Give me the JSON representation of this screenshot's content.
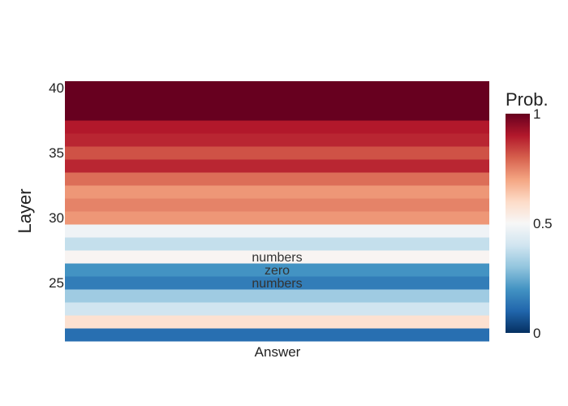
{
  "chart_data": {
    "type": "heatmap",
    "xlabel": "Answer",
    "ylabel": "Layer",
    "x_categories": [
      "Answer"
    ],
    "ylim": [
      20.5,
      40.5
    ],
    "y_ticks": [
      25,
      30,
      35,
      40
    ],
    "colorscale": "RdBu (reversed)",
    "colorbar": {
      "title": "Prob.",
      "min": 0,
      "max": 1,
      "ticks": [
        0,
        0.5,
        1
      ]
    },
    "cells": [
      {
        "layer": 21,
        "value": 0.12,
        "label": ""
      },
      {
        "layer": 22,
        "value": 0.58,
        "label": ""
      },
      {
        "layer": 23,
        "value": 0.4,
        "label": ""
      },
      {
        "layer": 24,
        "value": 0.32,
        "label": ""
      },
      {
        "layer": 25,
        "value": 0.15,
        "label": "numbers"
      },
      {
        "layer": 26,
        "value": 0.2,
        "label": "zero"
      },
      {
        "layer": 27,
        "value": 0.51,
        "label": "numbers"
      },
      {
        "layer": 28,
        "value": 0.38,
        "label": ""
      },
      {
        "layer": 29,
        "value": 0.48,
        "label": ""
      },
      {
        "layer": 30,
        "value": 0.72,
        "label": ""
      },
      {
        "layer": 31,
        "value": 0.75,
        "label": ""
      },
      {
        "layer": 32,
        "value": 0.72,
        "label": ""
      },
      {
        "layer": 33,
        "value": 0.78,
        "label": ""
      },
      {
        "layer": 34,
        "value": 0.88,
        "label": ""
      },
      {
        "layer": 35,
        "value": 0.82,
        "label": ""
      },
      {
        "layer": 36,
        "value": 0.88,
        "label": ""
      },
      {
        "layer": 37,
        "value": 0.9,
        "label": ""
      },
      {
        "layer": 38,
        "value": 1.0,
        "label": ""
      },
      {
        "layer": 39,
        "value": 1.0,
        "label": ""
      },
      {
        "layer": 40,
        "value": 1.0,
        "label": ""
      }
    ]
  }
}
